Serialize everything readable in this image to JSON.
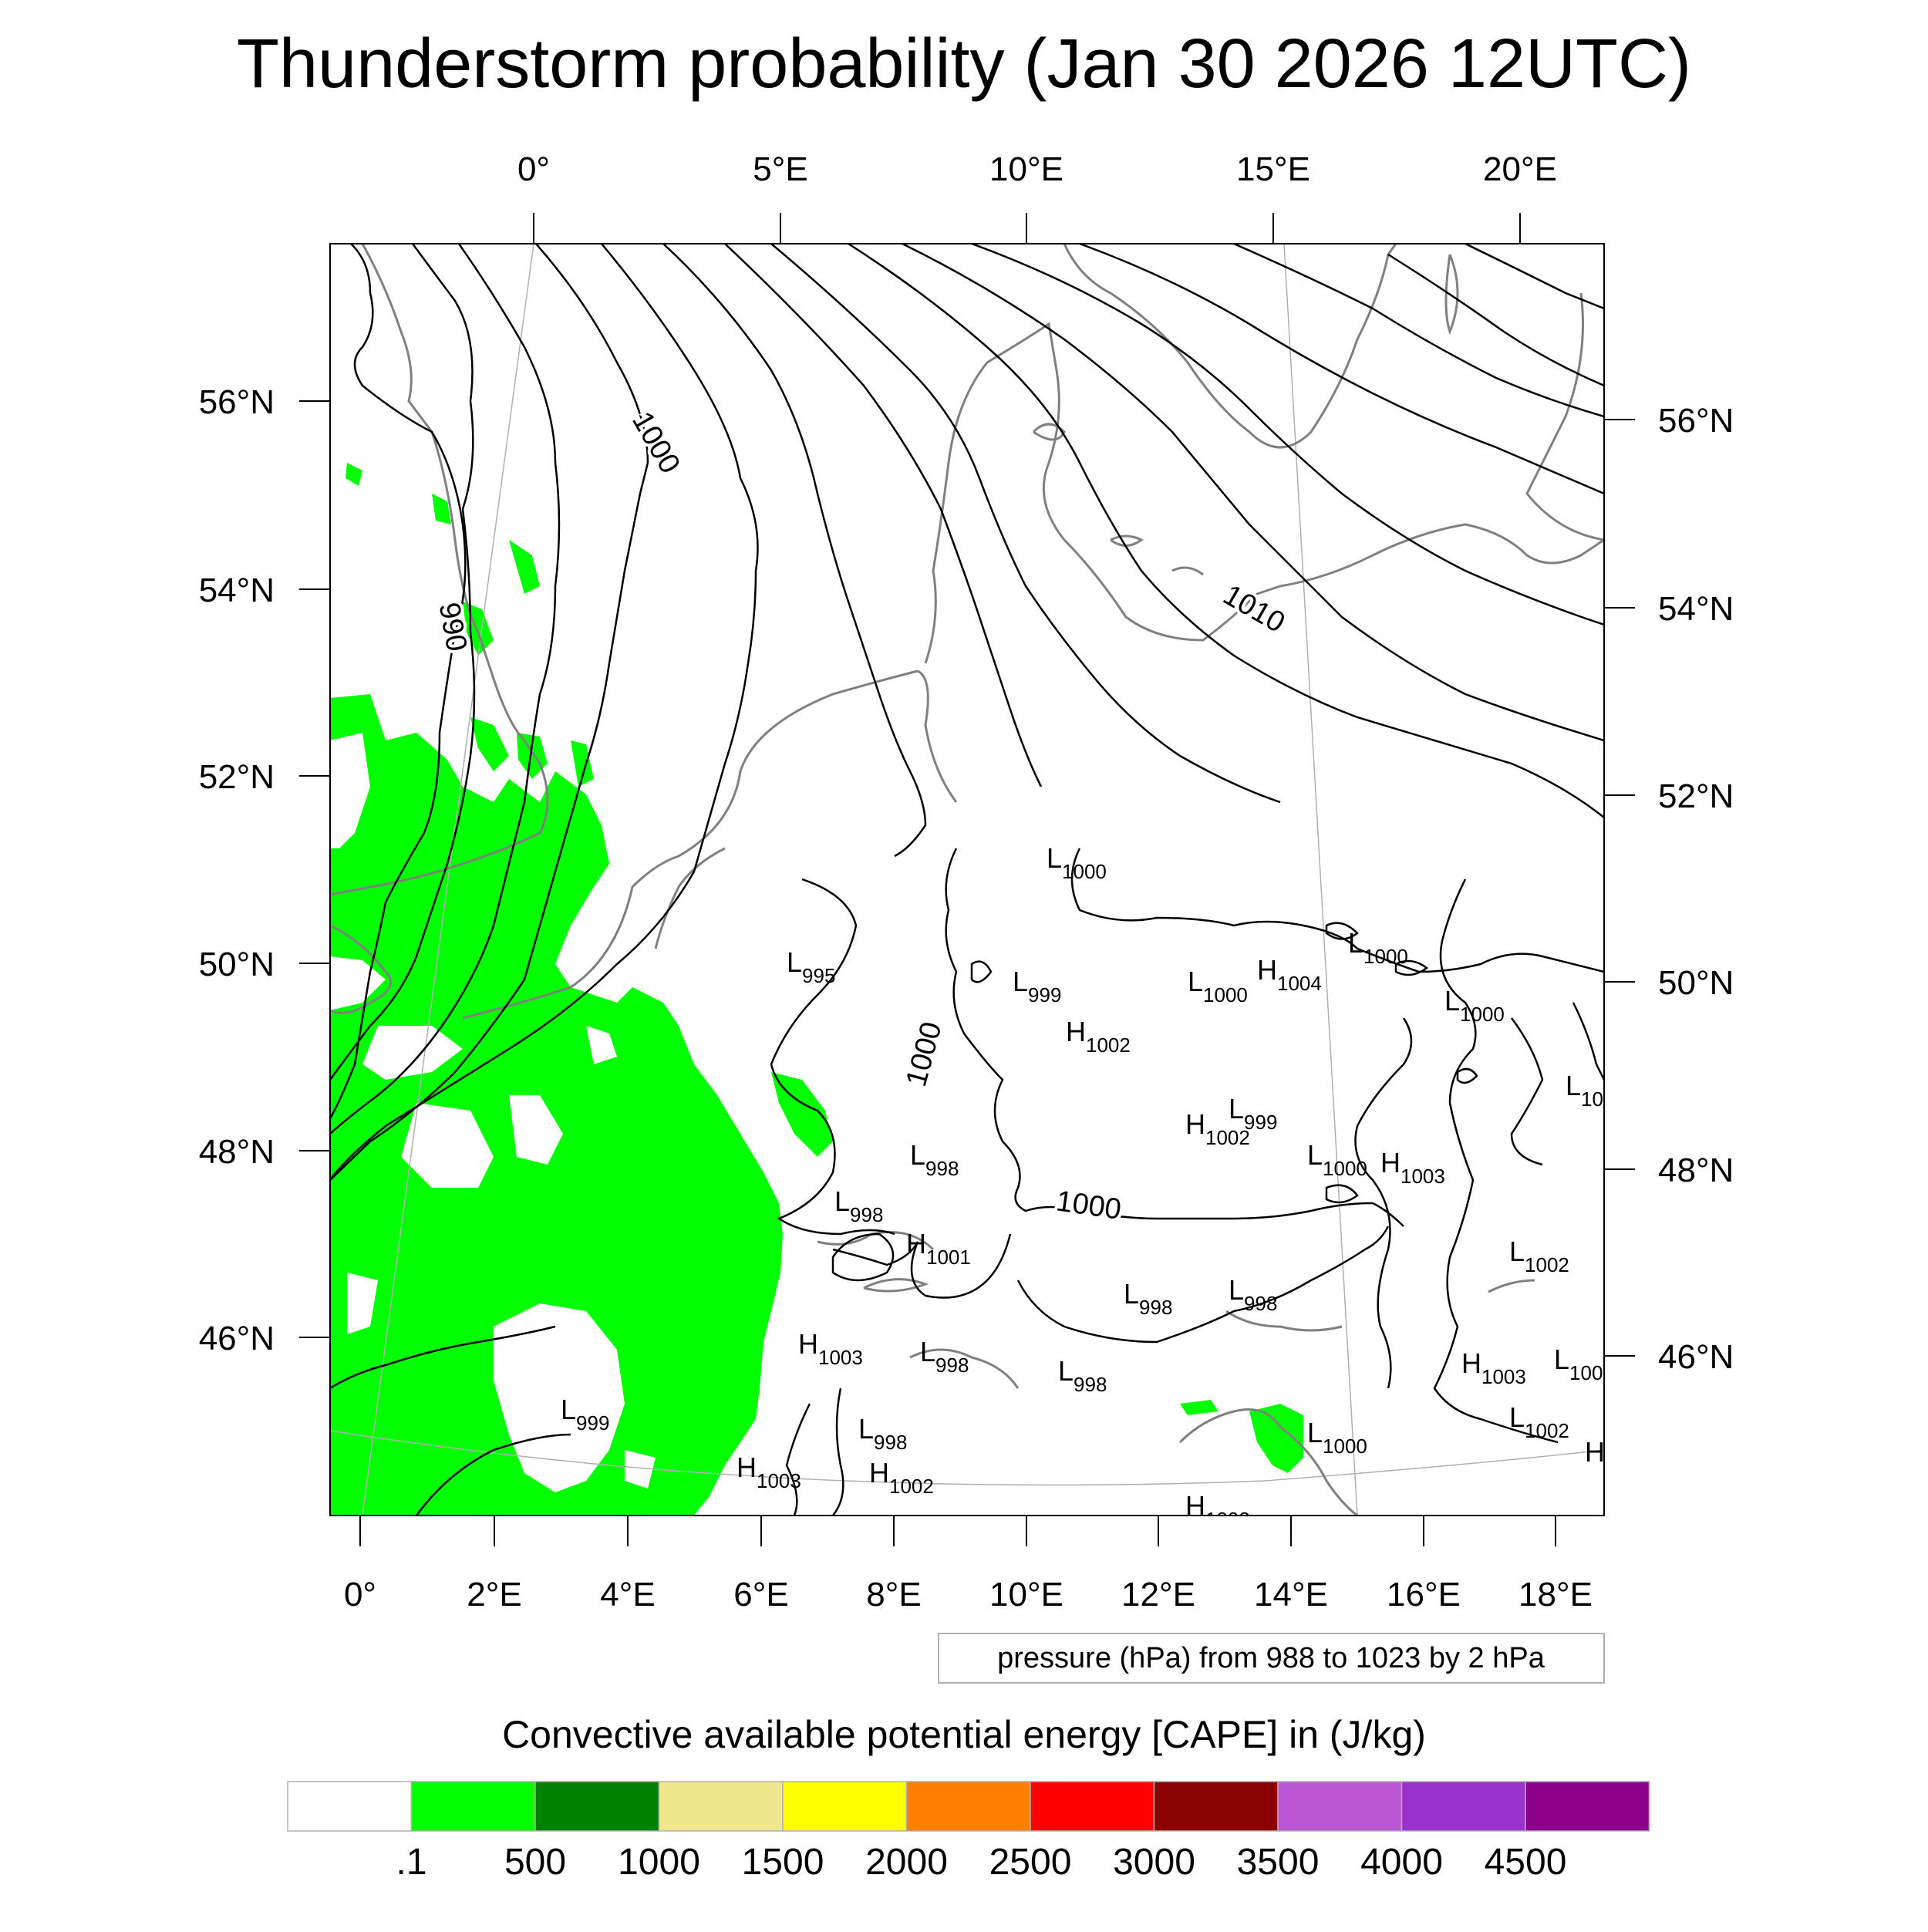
{
  "title": "Thunderstorm probability (Jan 30 2026 12UTC)",
  "top_lon_labels": [
    "0°",
    "5°E",
    "10°E",
    "15°E",
    "20°E"
  ],
  "bottom_lon_labels": [
    "0°",
    "2°E",
    "4°E",
    "6°E",
    "8°E",
    "10°E",
    "12°E",
    "14°E",
    "16°E",
    "18°E"
  ],
  "left_lat_labels": [
    "56°N",
    "54°N",
    "52°N",
    "50°N",
    "48°N",
    "46°N"
  ],
  "right_lat_labels": [
    "56°N",
    "54°N",
    "52°N",
    "50°N",
    "48°N",
    "46°N"
  ],
  "isobar_labels": [
    "1000",
    "990",
    "1010",
    "1000",
    "1000"
  ],
  "pressure_centers": [
    {
      "type": "L",
      "value": "1000"
    },
    {
      "type": "L",
      "value": "1000"
    },
    {
      "type": "L",
      "value": "995"
    },
    {
      "type": "L",
      "value": "999"
    },
    {
      "type": "L",
      "value": "1000"
    },
    {
      "type": "H",
      "value": "1004"
    },
    {
      "type": "L",
      "value": "1000"
    },
    {
      "type": "H",
      "value": "1002"
    },
    {
      "type": "L",
      "value": "10"
    },
    {
      "type": "L",
      "value": "999"
    },
    {
      "type": "H",
      "value": "1002"
    },
    {
      "type": "L",
      "value": "998"
    },
    {
      "type": "L",
      "value": "1000"
    },
    {
      "type": "H",
      "value": "1003"
    },
    {
      "type": "L",
      "value": "998"
    },
    {
      "type": "H",
      "value": "1001"
    },
    {
      "type": "L",
      "value": "1002"
    },
    {
      "type": "L",
      "value": "998"
    },
    {
      "type": "L",
      "value": "998"
    },
    {
      "type": "H",
      "value": "1003"
    },
    {
      "type": "L",
      "value": "998"
    },
    {
      "type": "L",
      "value": "998"
    },
    {
      "type": "H",
      "value": "1003"
    },
    {
      "type": "L",
      "value": "100"
    },
    {
      "type": "L",
      "value": "999"
    },
    {
      "type": "L",
      "value": "998"
    },
    {
      "type": "L",
      "value": "1002"
    },
    {
      "type": "L",
      "value": "1000"
    },
    {
      "type": "H",
      "value": "1003"
    },
    {
      "type": "H",
      "value": "1002"
    },
    {
      "type": "H",
      "value": "1002"
    },
    {
      "type": "H",
      "value": ""
    }
  ],
  "info_box": "pressure (hPa) from 988 to 1023 by 2 hPa",
  "colorbar": {
    "title": "Convective available potential energy [CAPE] in (J/kg)",
    "labels": [
      ".1",
      "500",
      "1000",
      "1500",
      "2000",
      "2500",
      "3000",
      "3500",
      "4000",
      "4500"
    ],
    "colors": [
      "#ffffff",
      "#00ff00",
      "#008000",
      "#f0e68c",
      "#ffff00",
      "#ff8000",
      "#ff0000",
      "#8b0000",
      "#ba55d3",
      "#9932cc",
      "#8b008b"
    ]
  },
  "colors": {
    "cape_fill": "#00ff00",
    "isobar": "#000000",
    "coastline": "#808080",
    "frame": "#000000"
  }
}
